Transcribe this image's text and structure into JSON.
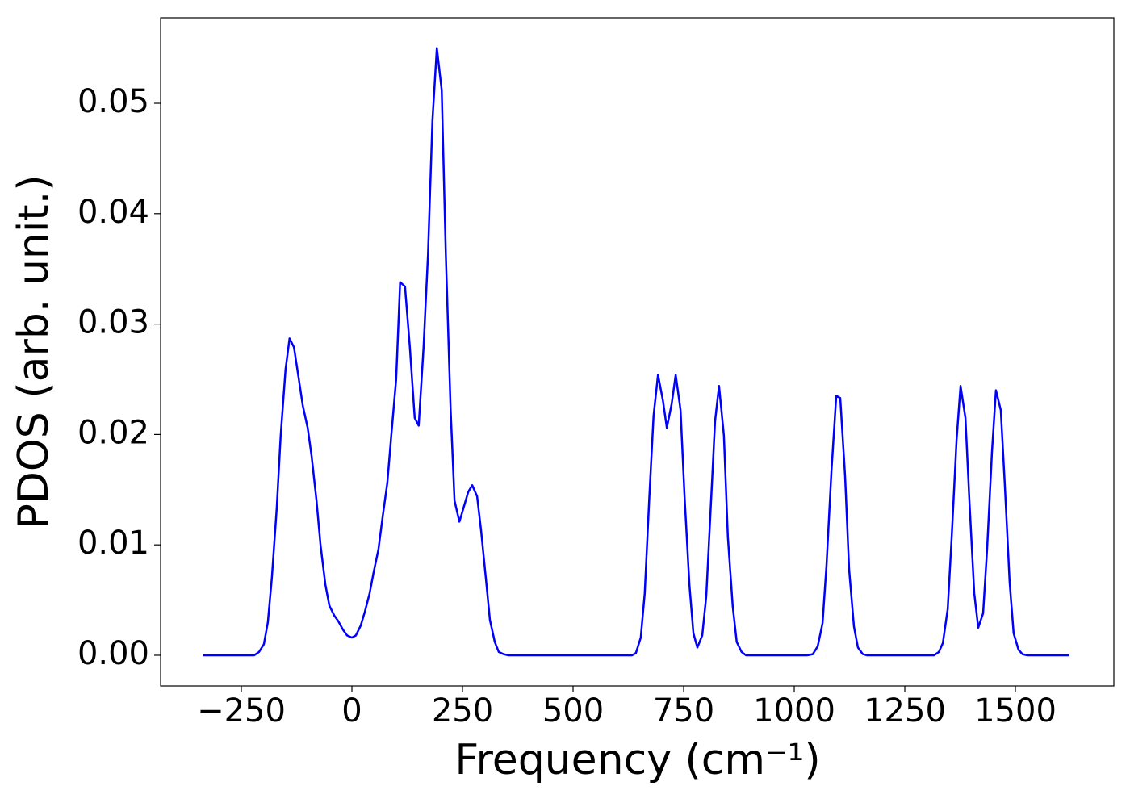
{
  "chart_data": {
    "type": "line",
    "x_label": "Frequency (cm⁻¹)",
    "y_label": "PDOS (arb. unit.)",
    "xlim": [
      -432.5,
      1722.6
    ],
    "ylim": [
      -0.00278,
      0.05775
    ],
    "xticks": [
      {
        "value": -250,
        "label": "−250"
      },
      0,
      250,
      500,
      750,
      1000,
      1250,
      1500
    ],
    "yticks": [
      {
        "value": 0,
        "label": "0.00"
      },
      {
        "value": 0.01,
        "label": "0.01"
      },
      {
        "value": 0.02,
        "label": "0.02"
      },
      {
        "value": 0.03,
        "label": "0.03"
      },
      {
        "value": 0.04,
        "label": "0.04"
      },
      {
        "value": 0.05,
        "label": "0.05"
      }
    ],
    "grid": false,
    "series": [
      {
        "color": "#0000ff",
        "x": [
          -336,
          -221,
          -210,
          -199,
          -190,
          -181,
          -170,
          -161,
          -150,
          -141,
          -131,
          -120,
          -111,
          -100,
          -91,
          -80,
          -71,
          -60,
          -51,
          -40,
          -31,
          -20,
          -11,
          0,
          9,
          20,
          29,
          40,
          49,
          60,
          69,
          80,
          89,
          100,
          109,
          120,
          131,
          142,
          151,
          162,
          172,
          182,
          192,
          203,
          212,
          223,
          232,
          243,
          252,
          263,
          272,
          283,
          292,
          303,
          312,
          323,
          332,
          343,
          354,
          633,
          642,
          653,
          662,
          672,
          682,
          692,
          703,
          712,
          723,
          732,
          743,
          752,
          763,
          772,
          781,
          792,
          801,
          812,
          821,
          830,
          841,
          850,
          861,
          870,
          881,
          891,
          1029,
          1042,
          1053,
          1064,
          1073,
          1084,
          1095,
          1104,
          1115,
          1124,
          1135,
          1144,
          1155,
          1164,
          1316,
          1327,
          1336,
          1347,
          1356,
          1367,
          1376,
          1387,
          1396,
          1407,
          1416,
          1427,
          1436,
          1447,
          1456,
          1467,
          1476,
          1487,
          1496,
          1507,
          1516,
          1527,
          1622
        ],
        "values": [
          0,
          0,
          0.0003,
          0.001,
          0.003,
          0.007,
          0.0133,
          0.0199,
          0.0259,
          0.0287,
          0.0279,
          0.025,
          0.0226,
          0.0206,
          0.018,
          0.014,
          0.01,
          0.0064,
          0.0045,
          0.0036,
          0.0031,
          0.0023,
          0.0018,
          0.0016,
          0.0018,
          0.0027,
          0.0039,
          0.0056,
          0.0075,
          0.0096,
          0.0124,
          0.0156,
          0.0199,
          0.025,
          0.0338,
          0.0334,
          0.0279,
          0.0215,
          0.0208,
          0.0279,
          0.0363,
          0.0484,
          0.055,
          0.0512,
          0.0367,
          0.0224,
          0.014,
          0.0121,
          0.0133,
          0.0148,
          0.0154,
          0.0144,
          0.0113,
          0.0069,
          0.0032,
          0.0012,
          0.0003,
          0.0001,
          0,
          0,
          0.0002,
          0.0016,
          0.0056,
          0.014,
          0.0217,
          0.0254,
          0.0231,
          0.0206,
          0.0228,
          0.0254,
          0.0222,
          0.0144,
          0.0064,
          0.002,
          0.0007,
          0.0018,
          0.0053,
          0.014,
          0.0212,
          0.0244,
          0.0199,
          0.0107,
          0.0044,
          0.0012,
          0.0003,
          0,
          0,
          0.0001,
          0.0008,
          0.0029,
          0.0082,
          0.0166,
          0.0235,
          0.0233,
          0.0162,
          0.0078,
          0.0026,
          0.0007,
          0.0001,
          0,
          0,
          0.0003,
          0.0011,
          0.0042,
          0.0107,
          0.0195,
          0.0244,
          0.0215,
          0.014,
          0.0056,
          0.0025,
          0.0038,
          0.0096,
          0.0184,
          0.024,
          0.0222,
          0.0155,
          0.0066,
          0.002,
          0.0005,
          0.0001,
          0,
          0
        ]
      }
    ]
  }
}
